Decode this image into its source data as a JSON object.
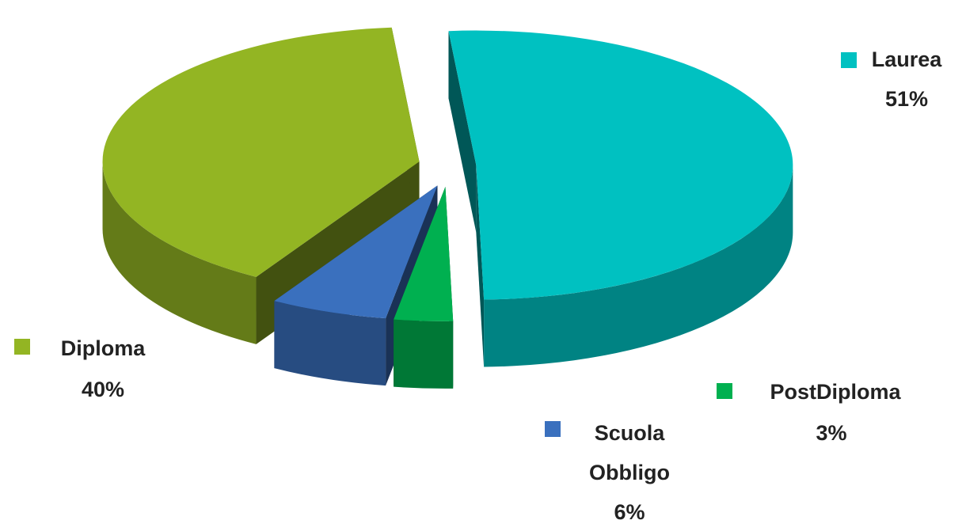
{
  "chart_data": {
    "type": "pie",
    "categories": [
      "Laurea",
      "PostDiploma",
      "Scuola Obbligo",
      "Diploma"
    ],
    "values": [
      51,
      3,
      6,
      40
    ],
    "value_labels": [
      "51%",
      "3%",
      "6%",
      "40%"
    ],
    "colors": [
      "#00C1C1",
      "#00B050",
      "#3A70BE",
      "#93B523"
    ]
  }
}
